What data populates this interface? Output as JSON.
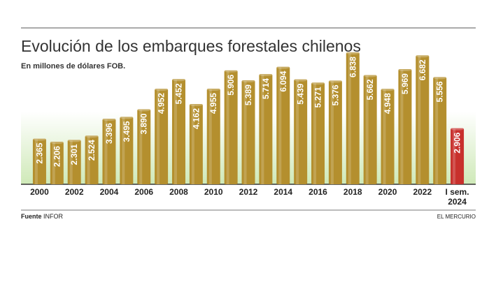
{
  "chart_data": {
    "type": "bar",
    "title": "Evolución de los embarques forestales chilenos",
    "subtitle": "En millones de dólares FOB.",
    "categories": [
      "2000",
      null,
      "2002",
      null,
      "2004",
      null,
      "2006",
      null,
      "2008",
      null,
      "2010",
      null,
      "2012",
      null,
      "2014",
      null,
      "2016",
      null,
      "2018",
      null,
      "2020",
      null,
      "2022",
      null,
      "I sem. 2024"
    ],
    "values": [
      2365,
      2206,
      2301,
      2524,
      3396,
      3495,
      3890,
      4952,
      5452,
      4162,
      4955,
      5906,
      5389,
      5714,
      6094,
      5439,
      5271,
      5376,
      6838,
      5662,
      4948,
      5969,
      6682,
      5556,
      2906
    ],
    "value_labels": [
      "2.365",
      "2.206",
      "2.301",
      "2.524",
      "3.396",
      "3.495",
      "3.890",
      "4.952",
      "5.452",
      "4.162",
      "4.955",
      "5.906",
      "5.389",
      "5.714",
      "6.094",
      "5.439",
      "5.271",
      "5.376",
      "6.838",
      "5.662",
      "4.948",
      "5.969",
      "6.682",
      "5.556",
      "2.906"
    ],
    "colors": [
      "#b48f2e",
      "#b48f2e",
      "#b48f2e",
      "#b48f2e",
      "#b48f2e",
      "#b48f2e",
      "#b48f2e",
      "#b48f2e",
      "#b48f2e",
      "#b48f2e",
      "#b48f2e",
      "#b48f2e",
      "#b48f2e",
      "#b48f2e",
      "#b48f2e",
      "#b48f2e",
      "#b48f2e",
      "#b48f2e",
      "#b48f2e",
      "#b48f2e",
      "#b48f2e",
      "#b48f2e",
      "#b48f2e",
      "#b48f2e",
      "#c8302c"
    ],
    "source_label": "Fuente",
    "source": "INFOR",
    "credit": "EL MERCURIO"
  }
}
